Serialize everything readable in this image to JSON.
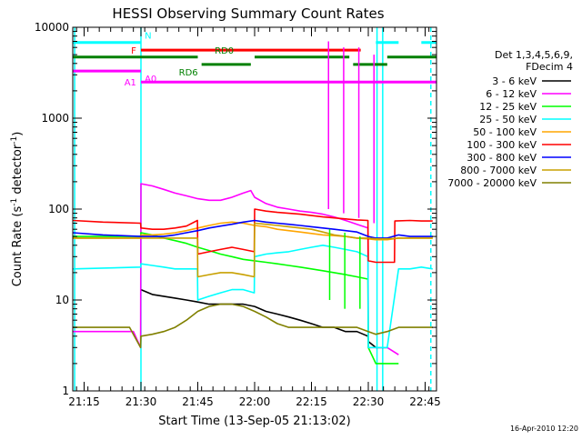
{
  "chart_data": {
    "type": "line",
    "title": "HESSI Observing Summary Count Rates",
    "xlabel": "Start Time (13-Sep-05 21:13:02)",
    "ylabel": "Count Rate (s-1 detector-1)",
    "ylabel_parts": [
      "Count Rate (s",
      "-1",
      " detector",
      "-1",
      ")"
    ],
    "xlim": [
      12.0,
      108.0
    ],
    "ylim": [
      1,
      10000
    ],
    "yscale": "log",
    "x_ticks": [
      {
        "v": 15,
        "label": "21:15"
      },
      {
        "v": 30,
        "label": "21:30"
      },
      {
        "v": 45,
        "label": "21:45"
      },
      {
        "v": 60,
        "label": "22:00"
      },
      {
        "v": 75,
        "label": "22:15"
      },
      {
        "v": 90,
        "label": "22:30"
      },
      {
        "v": 105,
        "label": "22:45"
      }
    ],
    "y_ticks": [
      {
        "v": 1,
        "label": "1"
      },
      {
        "v": 10,
        "label": "10"
      },
      {
        "v": 100,
        "label": "100"
      },
      {
        "v": 1000,
        "label": "1000"
      },
      {
        "v": 10000,
        "label": "10000"
      }
    ],
    "legend_header": [
      "Det 1,3,4,5,6,9,",
      "FDecim 4"
    ],
    "legend_placement": "right",
    "timestamp": "16-Apr-2010 12:20",
    "flag_bars": [
      {
        "label": "N",
        "color": "#00ffff",
        "y": 6800,
        "segments": [
          [
            12,
            30
          ],
          [
            92,
            98
          ],
          [
            104,
            108
          ]
        ],
        "label_x": 30.5,
        "label_pos": "above-right"
      },
      {
        "label": "F",
        "color": "#ff0000",
        "y": 5600,
        "segments": [
          [
            30,
            88
          ]
        ],
        "label_x": 29.5,
        "label_pos": "left"
      },
      {
        "label": "RD0",
        "color": "#008000",
        "y": 4700,
        "segments": [
          [
            12,
            45
          ],
          [
            60,
            85
          ],
          [
            95,
            108
          ]
        ],
        "label_x": 52,
        "label_pos": "above"
      },
      {
        "label": "RD6",
        "color": "#008000",
        "y": 3900,
        "segments": [
          [
            46,
            59
          ],
          [
            86,
            95
          ]
        ],
        "label_x": 40,
        "label_pos": "below-left"
      },
      {
        "label": "A0",
        "color": "#ff00ff",
        "y": 3300,
        "segments": [
          [
            12,
            30
          ]
        ],
        "label_x": 30.5,
        "label_pos": "below-right"
      },
      {
        "label": "A1",
        "color": "#ff00ff",
        "y": 2500,
        "segments": [
          [
            30,
            108
          ]
        ],
        "label_x": 29.5,
        "label_pos": "left"
      }
    ],
    "series": [
      {
        "name": "3 - 6 keV",
        "color": "#000000",
        "x": [
          12,
          29.9,
          30,
          33,
          36,
          39,
          42,
          45,
          48,
          51,
          54,
          57,
          60,
          63,
          66,
          69,
          72,
          75,
          78,
          81,
          84,
          87,
          89.9,
          90,
          92,
          95,
          98,
          101,
          104,
          107
        ],
        "y": [
          null,
          null,
          13,
          11.5,
          11,
          10.5,
          10,
          9.5,
          9,
          9,
          9,
          9,
          8.5,
          7.5,
          7,
          6.5,
          6,
          5.5,
          5,
          5,
          4.5,
          4.5,
          4,
          3.5,
          3,
          3,
          null,
          null,
          null,
          null
        ]
      },
      {
        "name": "6 - 12 keV",
        "color": "#ff00ff",
        "x": [
          12,
          28,
          29.9,
          30,
          33,
          36,
          39,
          42,
          45,
          48,
          51,
          54,
          57,
          59,
          60,
          63,
          66,
          69,
          72,
          75,
          78,
          81,
          84,
          87,
          89.9,
          90,
          92,
          95,
          98,
          101,
          104,
          107
        ],
        "y": [
          4.5,
          4.5,
          3,
          190,
          180,
          165,
          150,
          140,
          130,
          125,
          125,
          135,
          150,
          160,
          135,
          115,
          105,
          100,
          95,
          92,
          88,
          82,
          75,
          68,
          62,
          3,
          3,
          3,
          2.5,
          null,
          null,
          null
        ]
      },
      {
        "name": "12 - 25 keV",
        "color": "#00ff00",
        "x": [
          12,
          29.9,
          30,
          33,
          36,
          39,
          42,
          45,
          48,
          51,
          54,
          57,
          60,
          63,
          66,
          69,
          72,
          75,
          78,
          81,
          84,
          87,
          89.9,
          90,
          92,
          95,
          98,
          101,
          104,
          107
        ],
        "y": [
          50,
          50,
          55,
          52,
          48,
          45,
          42,
          38,
          35,
          32,
          30,
          28,
          27,
          26,
          25,
          24,
          23,
          22,
          21,
          20,
          19,
          18,
          17,
          3,
          2,
          2,
          2,
          null,
          null,
          null
        ]
      },
      {
        "name": "25 - 50 keV",
        "color": "#00ffff",
        "x": [
          12,
          29.9,
          30,
          33,
          36,
          39,
          42,
          44.9,
          45,
          48,
          51,
          54,
          57,
          59.9,
          60,
          63,
          66,
          69,
          72,
          75,
          78,
          81,
          84,
          87,
          89.9,
          90,
          92,
          95,
          98,
          101,
          104,
          107
        ],
        "y": [
          22,
          23,
          25,
          24,
          23,
          22,
          22,
          22,
          10,
          11,
          12,
          13,
          13,
          12,
          30,
          32,
          33,
          34,
          36,
          38,
          40,
          38,
          36,
          34,
          30,
          3,
          3,
          3,
          22,
          22,
          23,
          22
        ]
      },
      {
        "name": "50 - 100 keV",
        "color": "#ffa500",
        "x": [
          12,
          20,
          29.9,
          30,
          33,
          36,
          39,
          42,
          45,
          48,
          51,
          54,
          57,
          60,
          63,
          66,
          69,
          72,
          75,
          78,
          81,
          84,
          87,
          90,
          92,
          95,
          98,
          101,
          104,
          107
        ],
        "y": [
          48,
          48,
          48,
          52,
          52,
          53,
          55,
          58,
          62,
          66,
          70,
          72,
          70,
          66,
          64,
          60,
          58,
          56,
          54,
          52,
          51,
          50,
          48,
          47,
          46,
          46,
          48,
          48,
          48,
          48
        ]
      },
      {
        "name": "100 - 300 keV",
        "color": "#ff0000",
        "x": [
          12,
          20,
          29.9,
          30,
          33,
          36,
          39,
          42,
          44.9,
          45,
          48,
          51,
          54,
          57,
          59.9,
          60,
          63,
          66,
          69,
          72,
          75,
          78,
          81,
          84,
          87,
          89.9,
          90,
          92,
          95,
          96.9,
          97,
          101,
          104,
          107
        ],
        "y": [
          75,
          72,
          70,
          62,
          60,
          60,
          62,
          65,
          75,
          32,
          34,
          36,
          38,
          36,
          34,
          100,
          95,
          92,
          90,
          88,
          85,
          82,
          80,
          78,
          76,
          75,
          27,
          26,
          26,
          26,
          74,
          75,
          74,
          74
        ]
      },
      {
        "name": "300 - 800 keV",
        "color": "#0000ff",
        "x": [
          12,
          20,
          30,
          33,
          36,
          39,
          42,
          45,
          48,
          51,
          54,
          57,
          60,
          63,
          66,
          69,
          72,
          75,
          78,
          81,
          84,
          87,
          90,
          92,
          95,
          98,
          101,
          104,
          107
        ],
        "y": [
          55,
          52,
          50,
          50,
          50,
          52,
          55,
          58,
          62,
          65,
          68,
          72,
          75,
          72,
          70,
          68,
          66,
          64,
          62,
          60,
          58,
          56,
          50,
          48,
          48,
          52,
          50,
          50,
          50
        ]
      },
      {
        "name": "800 - 7000 keV",
        "color": "#c8a000",
        "x": [
          12,
          20,
          30,
          33,
          36,
          39,
          42,
          44.9,
          45,
          48,
          51,
          54,
          57,
          59.9,
          60,
          63,
          66,
          69,
          72,
          75,
          78,
          81,
          84,
          87,
          90,
          92,
          95,
          98,
          101,
          104,
          107
        ],
        "y": [
          48,
          48,
          48,
          48,
          48,
          48,
          48,
          48,
          18,
          19,
          20,
          20,
          19,
          18,
          70,
          68,
          66,
          64,
          62,
          60,
          56,
          52,
          50,
          48,
          48,
          47,
          47,
          48,
          48,
          48,
          48
        ]
      },
      {
        "name": "7000 - 20000 keV",
        "color": "#808000",
        "x": [
          12,
          20,
          27,
          29.9,
          30,
          33,
          36,
          39,
          42,
          45,
          48,
          51,
          54,
          57,
          60,
          63,
          66,
          69,
          72,
          75,
          78,
          81,
          84,
          87,
          90,
          92,
          95,
          98,
          101,
          104,
          107
        ],
        "y": [
          5,
          5,
          5,
          3,
          4,
          4.2,
          4.5,
          5,
          6,
          7.5,
          8.5,
          9,
          9,
          8.5,
          7.5,
          6.5,
          5.5,
          5,
          5,
          5,
          5,
          5,
          5,
          5,
          4.5,
          4.2,
          4.5,
          5,
          5,
          5,
          5
        ]
      }
    ],
    "spikes": [
      {
        "color": "#ff00ff",
        "x": 79.5,
        "y": [
          100,
          7000
        ]
      },
      {
        "color": "#00ff00",
        "x": 79.8,
        "y": [
          10,
          60
        ]
      },
      {
        "color": "#ff00ff",
        "x": 83.5,
        "y": [
          90,
          6000
        ]
      },
      {
        "color": "#00ff00",
        "x": 83.8,
        "y": [
          8,
          55
        ]
      },
      {
        "color": "#ff00ff",
        "x": 87.5,
        "y": [
          80,
          6000
        ]
      },
      {
        "color": "#00ff00",
        "x": 87.8,
        "y": [
          8,
          50
        ]
      },
      {
        "color": "#ff00ff",
        "x": 91.5,
        "y": [
          70,
          5000
        ]
      }
    ],
    "vlines": [
      {
        "color": "#00ffff",
        "x": 12.5,
        "style": "solid"
      },
      {
        "color": "#00ffff",
        "x": 30,
        "style": "solid"
      },
      {
        "color": "#00ffff",
        "x": 92.3,
        "style": "solid"
      },
      {
        "color": "#00ffff",
        "x": 93.8,
        "style": "solid"
      },
      {
        "color": "#00ffff",
        "x": 106.5,
        "style": "dashed"
      }
    ]
  }
}
